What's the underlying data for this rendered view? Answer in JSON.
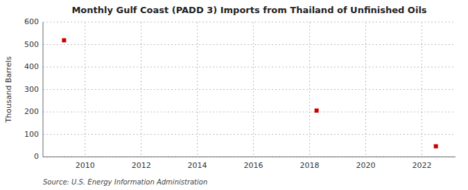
{
  "chart_data": {
    "type": "scatter",
    "title": "Monthly Gulf Coast (PADD 3) Imports from Thailand of Unfinished Oils",
    "y_label": "Thousand Barrels",
    "source": "Source: U.S. Energy Information Administration",
    "x": [
      2009.25,
      2018.25,
      2022.5
    ],
    "values": [
      519,
      206,
      47
    ],
    "color": "#cc0000",
    "marker": "square",
    "xlim": [
      2008.5,
      2023.2
    ],
    "ylim": [
      0,
      600
    ],
    "xticks": [
      2010,
      2012,
      2014,
      2016,
      2018,
      2020,
      2022
    ],
    "yticks": [
      0,
      100,
      200,
      300,
      400,
      500,
      600
    ],
    "grid": true
  }
}
